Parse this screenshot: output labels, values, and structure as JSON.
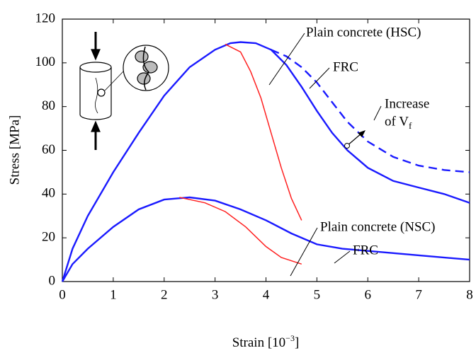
{
  "chart_data": {
    "type": "line",
    "xlabel": [
      "Strain [10",
      "−3",
      "]"
    ],
    "ylabel": "Stress [MPa]",
    "xlim": [
      0,
      8
    ],
    "ylim": [
      0,
      120
    ],
    "xticks": [
      0,
      1,
      2,
      3,
      4,
      5,
      6,
      7,
      8
    ],
    "yticks": [
      0,
      20,
      40,
      60,
      80,
      100,
      120
    ],
    "series": [
      {
        "color": "#1a1aff",
        "dash": false,
        "x": [
          0,
          0.2,
          0.5,
          1,
          1.5,
          2,
          2.5,
          3,
          3.3,
          3.5,
          3.8,
          4.1,
          4.4,
          4.7,
          5,
          5.3,
          5.6,
          6,
          6.5,
          7,
          7.5,
          8
        ],
        "values": [
          0,
          15,
          30,
          50,
          68,
          85,
          98,
          106,
          109,
          109.5,
          109,
          106,
          99,
          89,
          78,
          68,
          60,
          52,
          46,
          43,
          40,
          36
        ]
      },
      {
        "color": "#1a1aff",
        "dash": true,
        "x": [
          4.1,
          4.4,
          4.7,
          5,
          5.3,
          5.6,
          6,
          6.5,
          7,
          7.5,
          8
        ],
        "values": [
          106,
          103,
          98,
          91,
          82,
          73,
          64,
          57,
          53,
          51,
          50
        ]
      },
      {
        "color": "#ff2020",
        "dash": false,
        "x": [
          3.2,
          3.5,
          3.7,
          3.9,
          4.1,
          4.3,
          4.5,
          4.7
        ],
        "values": [
          108.5,
          105,
          96,
          84,
          68,
          52,
          38,
          28
        ]
      },
      {
        "color": "#1a1aff",
        "dash": false,
        "x": [
          0,
          0.2,
          0.5,
          1,
          1.5,
          2,
          2.5,
          3,
          3.5,
          4,
          4.5,
          5,
          5.5,
          6,
          7,
          8
        ],
        "values": [
          0,
          8,
          15,
          25,
          33,
          37.5,
          38.5,
          37,
          33,
          28,
          22,
          17,
          15,
          14,
          12,
          10
        ]
      },
      {
        "color": "#ff2020",
        "dash": false,
        "x": [
          2.3,
          2.8,
          3.2,
          3.6,
          4,
          4.3,
          4.7
        ],
        "values": [
          38.5,
          36,
          32,
          25,
          16,
          11,
          8
        ]
      }
    ],
    "annotations": [
      "Plain concrete (HSC)",
      "FRC",
      "Increase",
      "of V",
      "f",
      "Plain concrete (NSC)",
      "FRC"
    ]
  }
}
